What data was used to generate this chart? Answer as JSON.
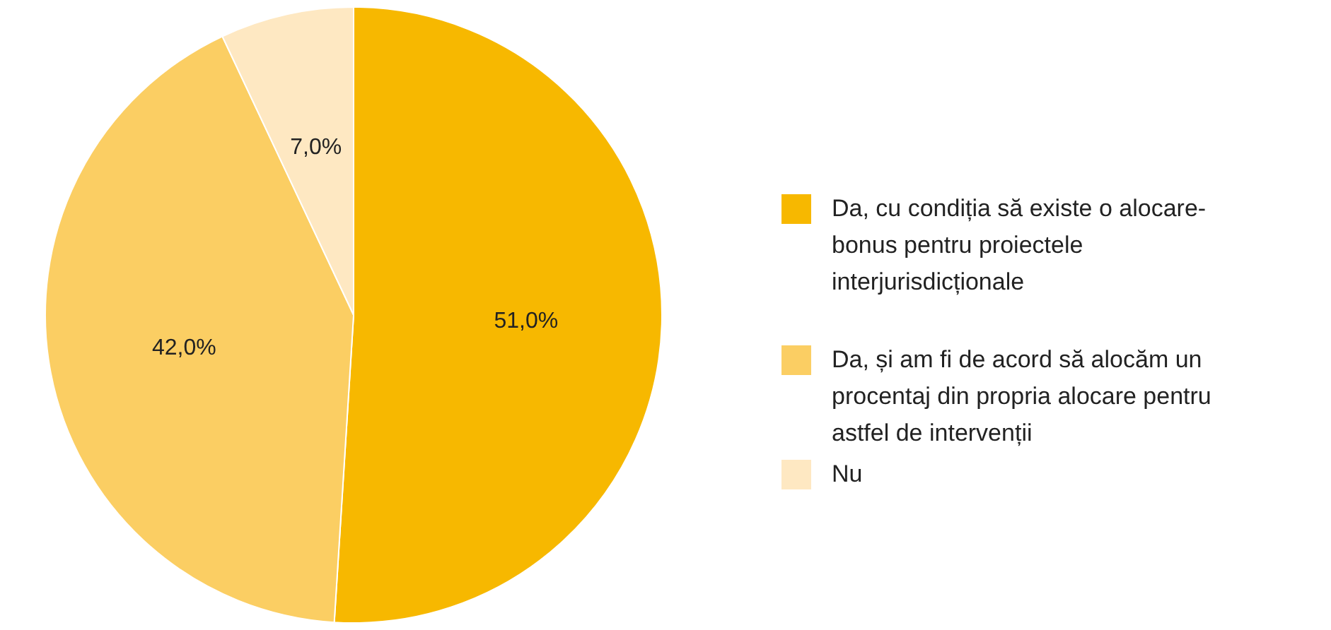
{
  "chart_data": {
    "type": "pie",
    "categories": [
      "Da, cu condiția să existe o alocare-bonus pentru proiectele interjurisdicționale",
      "Da, și am fi de acord să alocăm un procentaj din propria alocare pentru astfel de intervenții",
      "Nu"
    ],
    "values": [
      51.0,
      42.0,
      7.0
    ],
    "colors": [
      "#f7b800",
      "#fbce63",
      "#fee8c2"
    ],
    "value_labels": [
      "51,0%",
      "42,0%",
      "7,0%"
    ],
    "legend": "right"
  }
}
